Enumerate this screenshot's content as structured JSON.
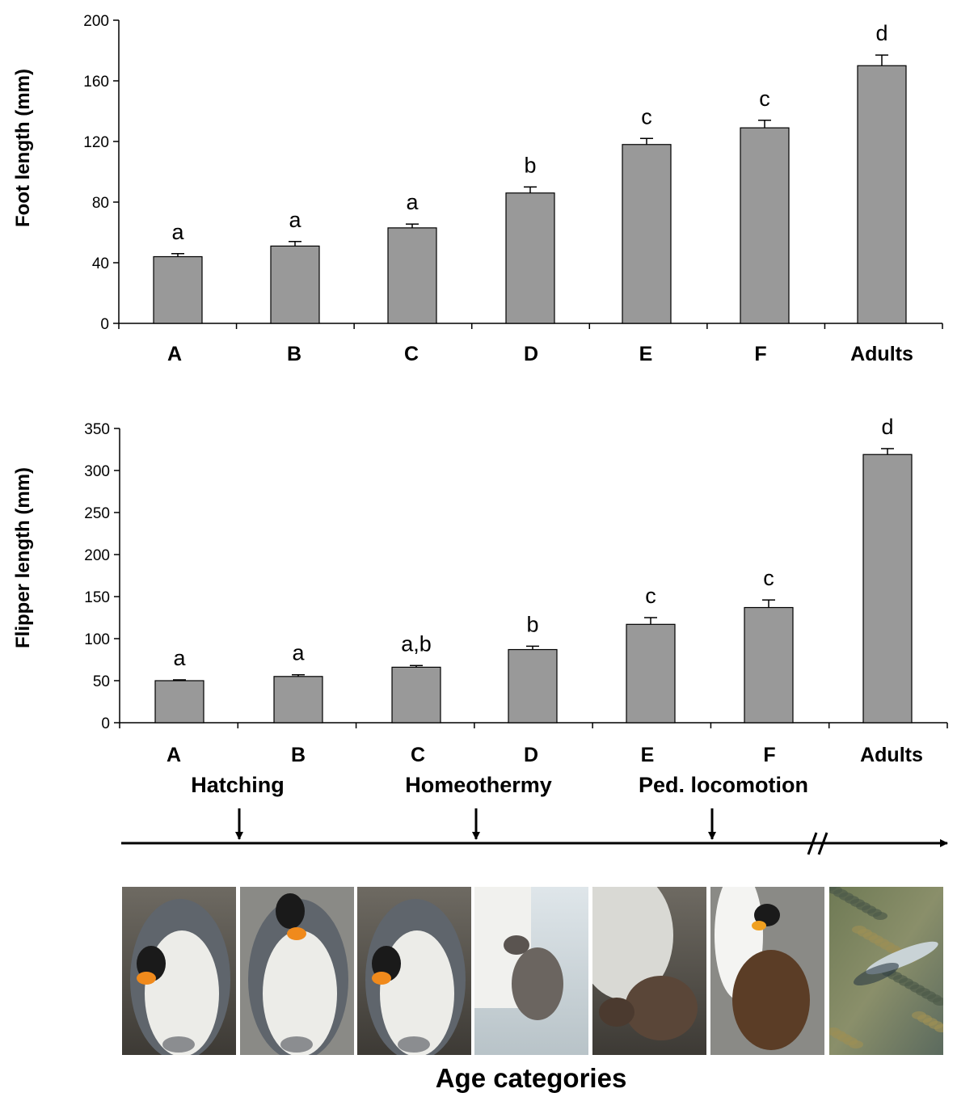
{
  "chart_data": [
    {
      "type": "bar",
      "ylabel": "Foot length (mm)",
      "categories": [
        "A",
        "B",
        "C",
        "D",
        "E",
        "F",
        "Adults"
      ],
      "values": [
        44,
        51,
        63,
        86,
        118,
        129,
        170
      ],
      "errors": [
        2,
        3,
        2.5,
        4,
        4,
        5,
        7
      ],
      "significance": [
        "a",
        "a",
        "a",
        "b",
        "c",
        "c",
        "d"
      ],
      "ylim": [
        0,
        200
      ],
      "yticks": [
        0,
        40,
        80,
        120,
        160,
        200
      ],
      "grid": false,
      "bar_color": "#999999"
    },
    {
      "type": "bar",
      "ylabel": "Flipper length (mm)",
      "categories": [
        "A",
        "B",
        "C",
        "D",
        "E",
        "F",
        "Adults"
      ],
      "values": [
        50,
        55,
        66,
        87,
        117,
        137,
        319
      ],
      "errors": [
        1,
        2,
        2,
        4,
        8,
        9,
        7
      ],
      "significance": [
        "a",
        "a",
        "a,b",
        "b",
        "c",
        "c",
        "d"
      ],
      "ylim": [
        0,
        350
      ],
      "yticks": [
        0,
        50,
        100,
        150,
        200,
        250,
        300,
        350
      ],
      "grid": false,
      "bar_color": "#999999"
    }
  ],
  "timeline": {
    "events": [
      "Hatching",
      "Homeothermy",
      "Ped. locomotion"
    ],
    "break_mark": "//"
  },
  "photos": [
    {
      "name": "adult-brooding-hatchling",
      "subject": "adult king penguin brooding a hatchling"
    },
    {
      "name": "adult-with-chick-on-feet",
      "subject": "adult king penguin with small chick on feet"
    },
    {
      "name": "adult-brooding-chick",
      "subject": "adult king penguin brooding chick"
    },
    {
      "name": "grey-chick-beside-adult",
      "subject": "downy grey chick beside adult"
    },
    {
      "name": "brown-chick-resting",
      "subject": "brown chick resting against adult"
    },
    {
      "name": "brown-chick-with-adults",
      "subject": "large brown chick with adults"
    },
    {
      "name": "swimming-adult",
      "subject": "adult penguin swimming in water"
    }
  ],
  "footer": "Age categories"
}
